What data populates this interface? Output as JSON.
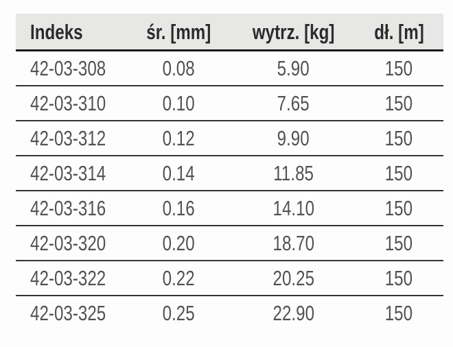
{
  "table": {
    "columns": [
      {
        "label": "Indeks",
        "align": "left"
      },
      {
        "label": "śr. [mm]",
        "align": "center"
      },
      {
        "label": "wytrz. [kg]",
        "align": "center"
      },
      {
        "label": "dł. [m]",
        "align": "center"
      }
    ],
    "rows": [
      [
        "42-03-308",
        "0.08",
        "5.90",
        "150"
      ],
      [
        "42-03-310",
        "0.10",
        "7.65",
        "150"
      ],
      [
        "42-03-312",
        "0.12",
        "9.90",
        "150"
      ],
      [
        "42-03-314",
        "0.14",
        "11.85",
        "150"
      ],
      [
        "42-03-316",
        "0.16",
        "14.10",
        "150"
      ],
      [
        "42-03-320",
        "0.20",
        "18.70",
        "150"
      ],
      [
        "42-03-322",
        "0.22",
        "20.25",
        "150"
      ],
      [
        "42-03-325",
        "0.25",
        "22.90",
        "150"
      ]
    ]
  },
  "colors": {
    "page_bg": "#fdfdfd",
    "header_bg": "#e7e7e6",
    "header_text": "#2b2b2b",
    "cell_text": "#525252",
    "divider": "#333333",
    "header_rule": "#1a1a1a"
  }
}
